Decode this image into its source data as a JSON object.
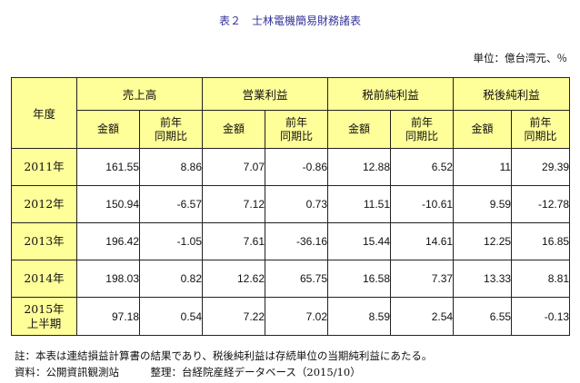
{
  "title": "表２　士林電機簡易財務諸表",
  "unit": "単位：億台湾元、％",
  "header": {
    "year_label": "年度",
    "groups": [
      "売上高",
      "営業利益",
      "税前純利益",
      "税後純利益"
    ],
    "amount_label": "金額",
    "yoy_line1": "前年",
    "yoy_line2": "同期比"
  },
  "rows": [
    {
      "year": "2011年",
      "year2": "",
      "values": [
        "161.55",
        "8.86",
        "7.07",
        "-0.86",
        "12.88",
        "6.52",
        "11",
        "29.39"
      ]
    },
    {
      "year": "2012年",
      "year2": "",
      "values": [
        "150.94",
        "-6.57",
        "7.12",
        "0.73",
        "11.51",
        "-10.61",
        "9.59",
        "-12.78"
      ]
    },
    {
      "year": "2013年",
      "year2": "",
      "values": [
        "196.42",
        "-1.05",
        "7.61",
        "-36.16",
        "15.44",
        "14.61",
        "12.25",
        "16.85"
      ]
    },
    {
      "year": "2014年",
      "year2": "",
      "values": [
        "198.03",
        "0.82",
        "12.62",
        "65.75",
        "16.58",
        "7.37",
        "13.33",
        "8.81"
      ]
    },
    {
      "year": "2015年",
      "year2": "上半期",
      "values": [
        "97.18",
        "0.54",
        "7.22",
        "7.02",
        "8.59",
        "2.54",
        "6.55",
        "-0.13"
      ]
    }
  ],
  "notes": {
    "note1": "註：本表は連結損益計算書の結果であり、税後純利益は存続単位の当期純利益にあたる。",
    "source": "資料：公開資訊観測站　　　整理：台経院産経データベース（2015/10）"
  }
}
